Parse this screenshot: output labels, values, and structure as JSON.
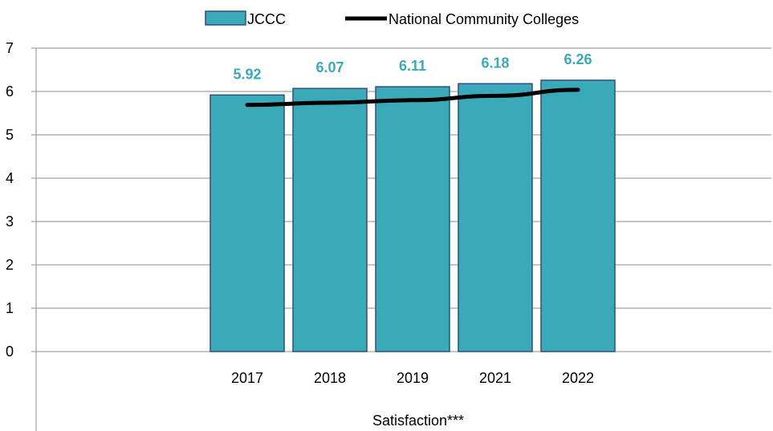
{
  "chart_data": {
    "type": "bar",
    "categories": [
      "2017",
      "2018",
      "2019",
      "2021",
      "2022"
    ],
    "series": [
      {
        "name": "JCCC",
        "type": "bar",
        "values": [
          5.92,
          6.07,
          6.11,
          6.18,
          6.26
        ],
        "color": "#3AAAB8"
      },
      {
        "name": "National Community Colleges",
        "type": "line",
        "values": [
          5.69,
          5.74,
          5.8,
          5.9,
          6.04
        ],
        "color": "#000000"
      }
    ],
    "data_labels": [
      "5.92",
      "6.07",
      "6.11",
      "6.18",
      "6.26"
    ],
    "xlabel": "Satisfaction***",
    "ylim": [
      0,
      7
    ],
    "yticks": [
      0,
      1,
      2,
      3,
      4,
      5,
      6,
      7
    ],
    "grid": true,
    "legend_position": "top",
    "colors": {
      "bar": "#3AAAB8",
      "bar_border": "#2E4E7E",
      "line": "#000000",
      "data_label": "#3AAAB8",
      "grid": "#8C8C8C"
    }
  }
}
